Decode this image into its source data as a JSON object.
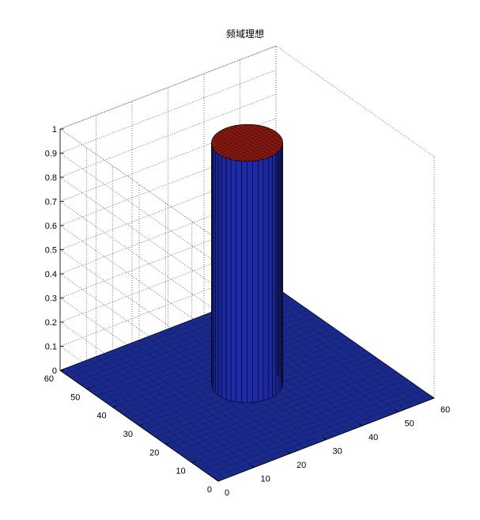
{
  "chart_data": {
    "type": "surface",
    "title": "频域理想",
    "xlabel": "",
    "ylabel": "",
    "zlabel": "",
    "filter": "ideal lowpass (frequency domain)",
    "surface": {
      "grid_x": [
        0,
        60
      ],
      "grid_y": [
        0,
        60
      ],
      "center": [
        30,
        30
      ],
      "cutoff_radius": 8,
      "value_inside": 1,
      "value_outside": 0
    },
    "xlim": [
      0,
      60
    ],
    "ylim": [
      0,
      60
    ],
    "zlim": [
      0,
      1
    ],
    "x_ticks": [
      "0",
      "10",
      "20",
      "30",
      "40",
      "50",
      "60"
    ],
    "y_ticks": [
      "0",
      "10",
      "20",
      "30",
      "40",
      "50",
      "60"
    ],
    "z_ticks": [
      "0",
      "0.1",
      "0.2",
      "0.3",
      "0.4",
      "0.5",
      "0.6",
      "0.7",
      "0.8",
      "0.9",
      "1"
    ],
    "grid": true,
    "colors": {
      "base": "#1a2a8c",
      "column_side": "#1e2aa8",
      "top_cap": "#8b1a12",
      "gridline": "#555555"
    }
  }
}
